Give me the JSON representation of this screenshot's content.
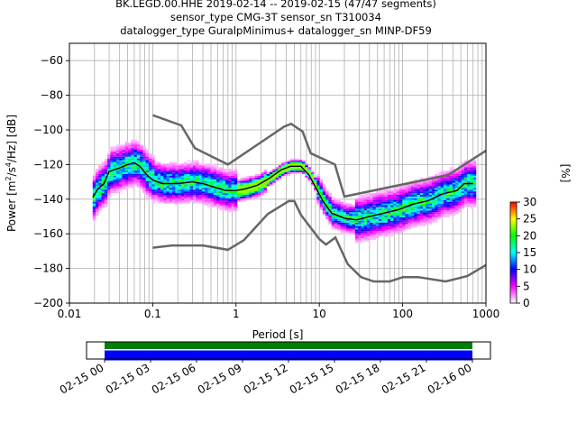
{
  "title": {
    "line1": "BK.LEGD.00.HHE   2019-02-14 -- 2019-02-15  (47/47 segments)",
    "line2": "sensor_type CMG-3T sensor_sn T310034",
    "line3": "datalogger_type GuralpMinimus+ datalogger_sn MINP-DF59"
  },
  "chart_data": [
    {
      "type": "heatmap",
      "name": "probabilistic-psd",
      "xlabel": "Period [s]",
      "ylabel": "Power [m^2/s^4/Hz] [dB]",
      "xscale": "log",
      "xlim": [
        0.01,
        1000
      ],
      "ylim": [
        -200,
        -50
      ],
      "xticks": [
        0.01,
        0.1,
        1,
        10,
        100,
        1000
      ],
      "xtick_labels": [
        "0.01",
        "0.1",
        "1",
        "10",
        "100",
        "1000"
      ],
      "yticks": [
        -200,
        -180,
        -160,
        -140,
        -120,
        -100,
        -80,
        -60
      ],
      "grid": true,
      "colorbar": {
        "label": "[%]",
        "range": [
          0,
          30
        ],
        "ticks": [
          0,
          5,
          10,
          15,
          20,
          25,
          30
        ],
        "colormap": [
          "#ffffff",
          "#ff00ff",
          "#0000ff",
          "#00ffff",
          "#00ff00",
          "#ffff00",
          "#ff0000"
        ]
      },
      "mode_curve": [
        [
          0.019,
          -139
        ],
        [
          0.022,
          -134
        ],
        [
          0.026,
          -131
        ],
        [
          0.03,
          -124
        ],
        [
          0.04,
          -122
        ],
        [
          0.05,
          -120
        ],
        [
          0.06,
          -119
        ],
        [
          0.07,
          -121
        ],
        [
          0.085,
          -126
        ],
        [
          0.1,
          -129
        ],
        [
          0.13,
          -131
        ],
        [
          0.2,
          -131
        ],
        [
          0.3,
          -130
        ],
        [
          0.4,
          -131
        ],
        [
          0.55,
          -133
        ],
        [
          0.75,
          -135
        ],
        [
          1.0,
          -135
        ],
        [
          1.3,
          -134
        ],
        [
          1.8,
          -132
        ],
        [
          2.5,
          -128
        ],
        [
          3.5,
          -123
        ],
        [
          4.5,
          -121
        ],
        [
          6.0,
          -121
        ],
        [
          7.5,
          -126
        ],
        [
          9.0,
          -133
        ],
        [
          11,
          -141
        ],
        [
          14,
          -148
        ],
        [
          20,
          -151
        ],
        [
          28,
          -152
        ],
        [
          40,
          -150
        ],
        [
          60,
          -148
        ],
        [
          90,
          -146
        ],
        [
          130,
          -143
        ],
        [
          200,
          -141
        ],
        [
          300,
          -137
        ],
        [
          450,
          -135
        ],
        [
          550,
          -131
        ],
        [
          700,
          -131
        ]
      ],
      "reference_models": [
        {
          "name": "NHNM",
          "points": [
            [
              0.1,
              -91.5
            ],
            [
              0.22,
              -97.4
            ],
            [
              0.32,
              -110.5
            ],
            [
              0.8,
              -120
            ],
            [
              3.8,
              -98
            ],
            [
              4.6,
              -96.5
            ],
            [
              6.3,
              -101
            ],
            [
              7.9,
              -113.5
            ],
            [
              15.4,
              -120
            ],
            [
              20,
              -138.5
            ],
            [
              354.8,
              -126
            ],
            [
              1000,
              -112
            ]
          ]
        },
        {
          "name": "NLNM",
          "points": [
            [
              0.1,
              -168
            ],
            [
              0.17,
              -166.7
            ],
            [
              0.4,
              -166.7
            ],
            [
              0.8,
              -169.2
            ],
            [
              1.24,
              -163.7
            ],
            [
              2.4,
              -148.6
            ],
            [
              4.3,
              -141.1
            ],
            [
              5.0,
              -141.1
            ],
            [
              6.0,
              -149
            ],
            [
              10,
              -163
            ],
            [
              12,
              -166.2
            ],
            [
              15.6,
              -162.1
            ],
            [
              21.9,
              -177.5
            ],
            [
              31.6,
              -185
            ],
            [
              45,
              -187.5
            ],
            [
              70,
              -187.5
            ],
            [
              101,
              -185
            ],
            [
              154,
              -185
            ],
            [
              328,
              -187.5
            ],
            [
              600,
              -184.4
            ],
            [
              1000,
              -178
            ]
          ]
        }
      ]
    },
    {
      "type": "bar",
      "name": "data-coverage",
      "xtick_labels": [
        "02-15 00",
        "02-15 03",
        "02-15 06",
        "02-15 09",
        "02-15 12",
        "02-15 15",
        "02-15 18",
        "02-15 21",
        "02-16 00"
      ],
      "series": [
        {
          "color": "#008000",
          "span": [
            "02-15 00",
            "02-16 00"
          ]
        },
        {
          "color": "#0000ff",
          "span": [
            "02-15 00",
            "02-16 00"
          ]
        }
      ]
    }
  ]
}
